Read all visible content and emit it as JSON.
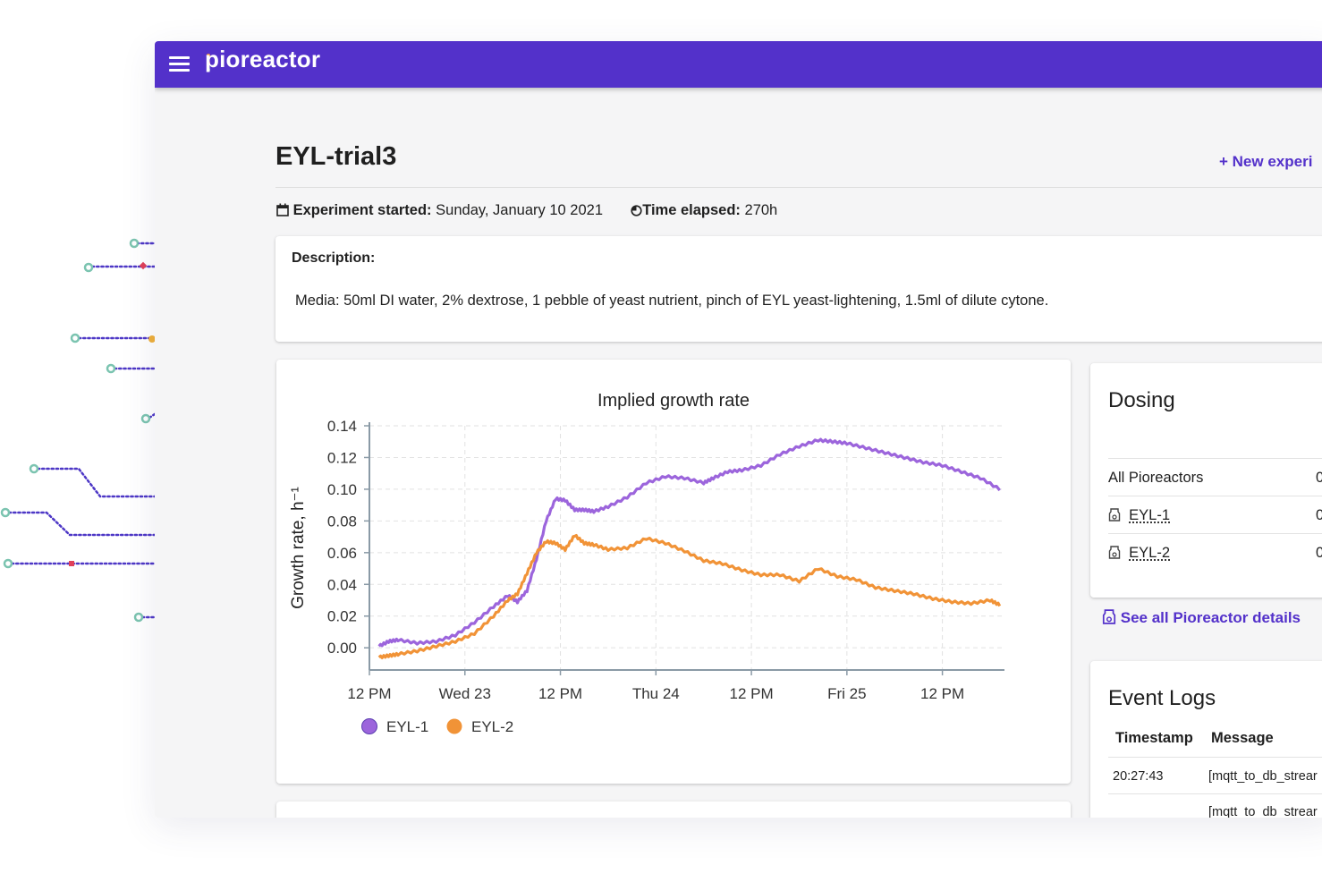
{
  "app": {
    "logo_text": "pioreactor",
    "logo_prefix": ":",
    "colors": {
      "brand": "#5331ca",
      "eyl1": "#9c65dc",
      "eyl2": "#f19337",
      "circuit": "#4d37c6"
    }
  },
  "experiment": {
    "title": "EYL-trial3",
    "new_experiment_label": "+ New experi",
    "started_label": "Experiment started:",
    "started_value": "Sunday, January 10 2021",
    "elapsed_label": "Time elapsed:",
    "elapsed_value": "270h",
    "calendar_icon": "calendar-icon",
    "timer_icon": "timer-icon"
  },
  "description": {
    "heading": "Description:",
    "text": "Media: 50ml DI water, 2% dextrose, 1 pebble of yeast nutrient, pinch of EYL yeast-lightening, 1.5ml of dilute cytone."
  },
  "chart_data": {
    "type": "line",
    "title": "Implied growth rate",
    "ylabel": "Growth rate, h⁻¹",
    "xlabel": "",
    "ylim": [
      -0.014,
      0.14
    ],
    "xlim": [
      0,
      66.5
    ],
    "yticks": [
      0.0,
      0.02,
      0.04,
      0.06,
      0.08,
      0.1,
      0.12,
      0.14
    ],
    "ytick_labels": [
      "0.00",
      "0.02",
      "0.04",
      "0.06",
      "0.08",
      "0.10",
      "0.12",
      "0.14"
    ],
    "xticks": [
      0,
      10,
      20,
      30,
      40,
      50,
      60
    ],
    "xtick_labels": [
      "12 PM",
      "Wed 23",
      "12 PM",
      "Thu 24",
      "12 PM",
      "Fri 25",
      "12 PM"
    ],
    "grid": true,
    "legend": "bottom-left",
    "series": [
      {
        "name": "EYL-1",
        "color": "#9c65dc",
        "x": [
          1,
          2,
          3,
          5,
          7,
          9,
          11,
          13,
          14.5,
          15.5,
          16.5,
          17.5,
          18.5,
          19.5,
          20.5,
          21.5,
          22.5,
          23.5,
          25,
          27,
          29,
          31,
          33,
          35,
          36,
          37.5,
          39,
          41,
          43,
          45,
          47,
          48.5,
          50,
          52,
          54,
          56,
          58,
          60,
          62,
          64,
          66
        ],
        "y": [
          0.001,
          0.004,
          0.005,
          0.003,
          0.004,
          0.008,
          0.016,
          0.026,
          0.033,
          0.029,
          0.036,
          0.056,
          0.08,
          0.094,
          0.093,
          0.087,
          0.087,
          0.086,
          0.089,
          0.095,
          0.104,
          0.108,
          0.107,
          0.104,
          0.107,
          0.111,
          0.112,
          0.115,
          0.122,
          0.127,
          0.131,
          0.13,
          0.129,
          0.126,
          0.123,
          0.12,
          0.117,
          0.115,
          0.111,
          0.107,
          0.1
        ]
      },
      {
        "name": "EYL-2",
        "color": "#f19337",
        "x": [
          1,
          2,
          3,
          5,
          7,
          9,
          11,
          13,
          14.5,
          15.5,
          16.5,
          17.5,
          18.5,
          19.5,
          20.5,
          21.5,
          22.5,
          23.5,
          25,
          27,
          29,
          31,
          33,
          35,
          37,
          39,
          41,
          43,
          45,
          47,
          49,
          51,
          53,
          55,
          57,
          59,
          61,
          63,
          65,
          66
        ],
        "y": [
          -0.006,
          -0.005,
          -0.004,
          -0.002,
          0.001,
          0.004,
          0.009,
          0.02,
          0.03,
          0.034,
          0.047,
          0.06,
          0.067,
          0.066,
          0.062,
          0.071,
          0.066,
          0.065,
          0.062,
          0.063,
          0.069,
          0.066,
          0.061,
          0.055,
          0.053,
          0.049,
          0.046,
          0.046,
          0.042,
          0.05,
          0.045,
          0.043,
          0.038,
          0.036,
          0.034,
          0.031,
          0.029,
          0.028,
          0.03,
          0.027
        ]
      }
    ]
  },
  "dosing": {
    "heading": "Dosing",
    "rows": [
      {
        "label": "All Pioreactors",
        "value": "0"
      },
      {
        "label": "EYL-1",
        "value": "0",
        "icon": "pioreactor-icon"
      },
      {
        "label": "EYL-2",
        "value": "0",
        "icon": "pioreactor-icon"
      }
    ],
    "see_all_label": "See all Pioreactor details"
  },
  "event_logs": {
    "heading": "Event Logs",
    "columns": [
      "Timestamp",
      "Message"
    ],
    "rows": [
      {
        "timestamp": "20:27:43",
        "message": "[mqtt_to_db_strear"
      },
      {
        "timestamp": "",
        "message": "[mqtt_to_db_strear"
      }
    ]
  }
}
